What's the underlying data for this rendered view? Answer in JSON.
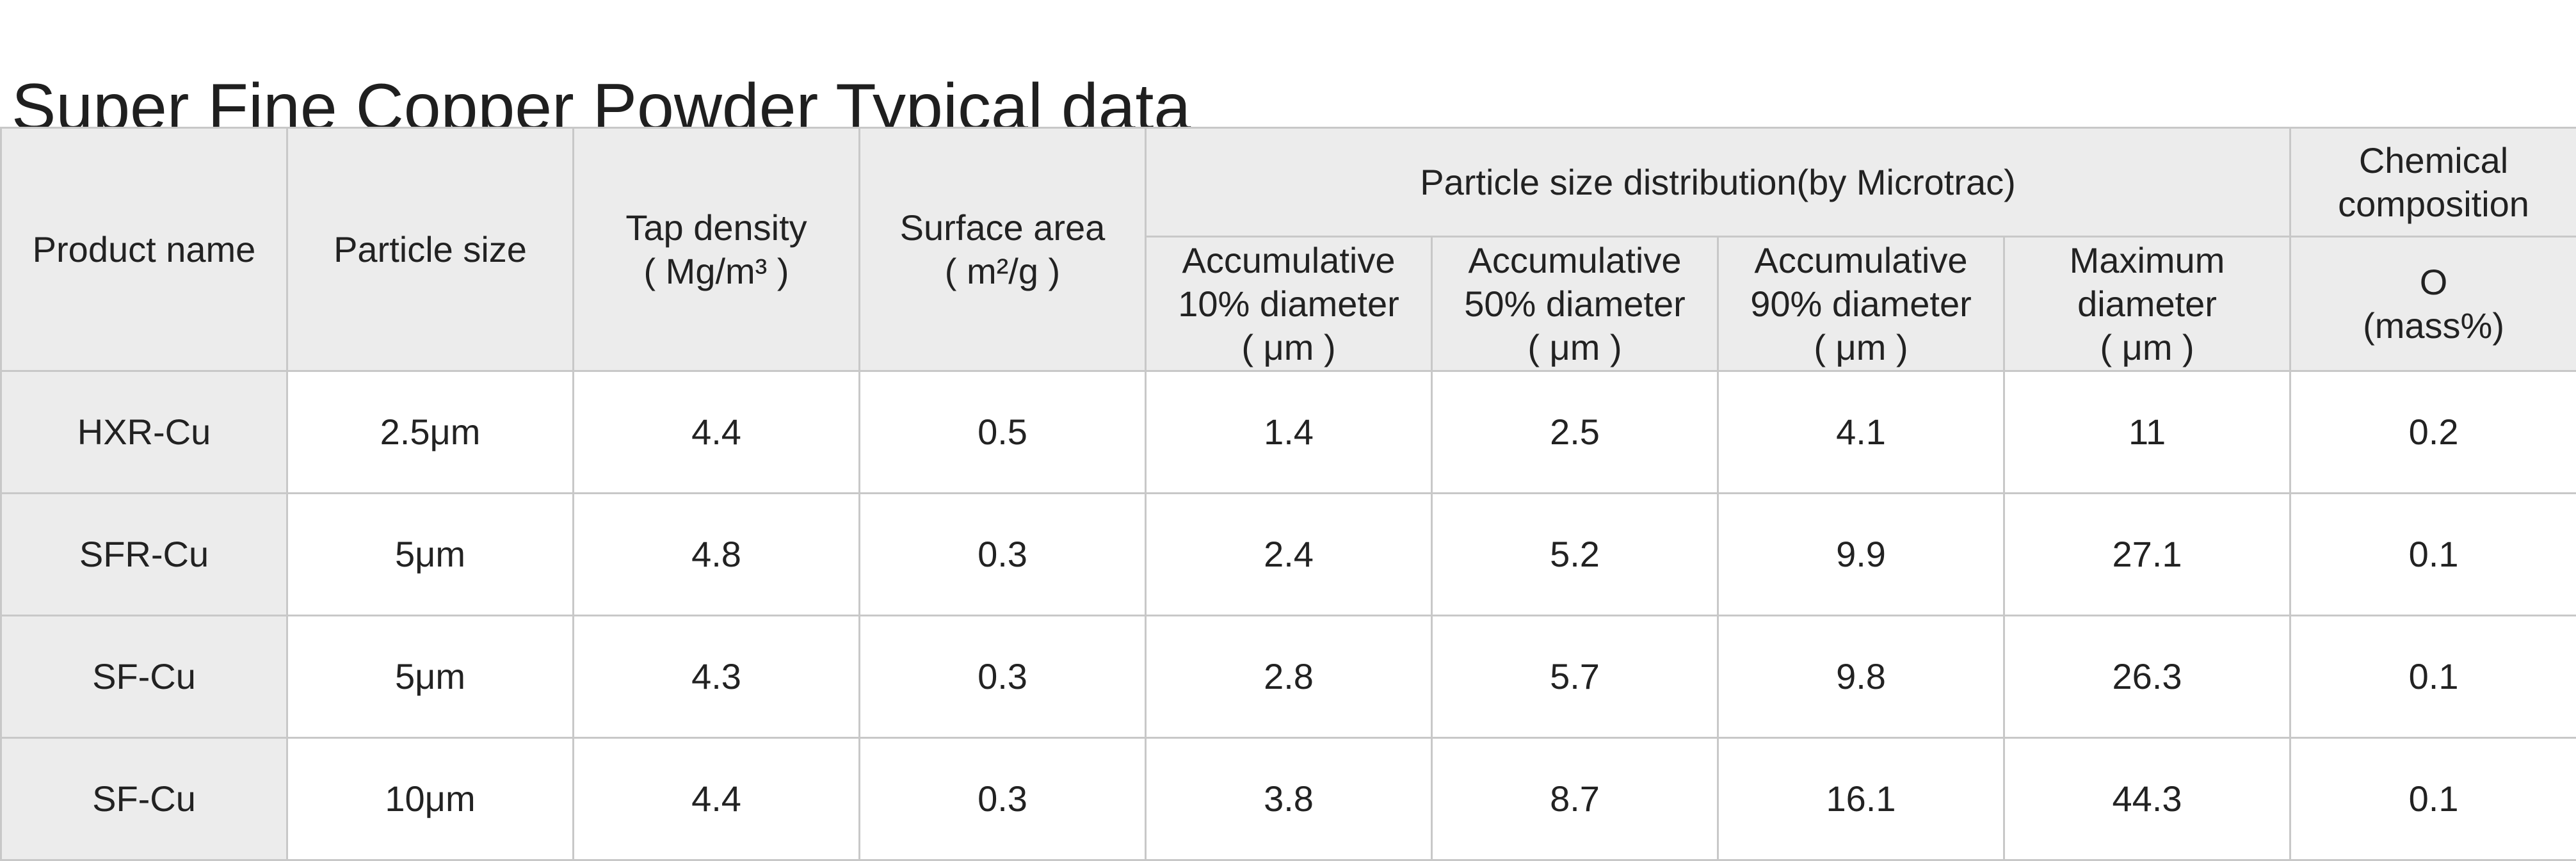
{
  "title": "Super Fine Copper Powder Typical data",
  "headers": {
    "product_name": "Product name",
    "particle_size": "Particle size",
    "tap_density": {
      "line1": "Tap density",
      "line2": "( Mg/m³ )"
    },
    "surface_area": {
      "line1": "Surface area",
      "line2": "( m²/g )"
    },
    "psd_group": "Particle size distribution(by Microtrac)",
    "chemical_group": {
      "line1": "Chemical",
      "line2": "composition"
    },
    "acc10": {
      "line1": "Accumulative",
      "line2": "10% diameter",
      "line3": "( μm )"
    },
    "acc50": {
      "line1": "Accumulative",
      "line2": "50% diameter",
      "line3": "( μm )"
    },
    "acc90": {
      "line1": "Accumulative",
      "line2": "90% diameter",
      "line3": "( μm )"
    },
    "max_diameter": {
      "line1": "Maximum",
      "line2": "diameter",
      "line3": "( μm )"
    },
    "oxygen": {
      "line1": "O",
      "line2": "(mass%)"
    }
  },
  "rows": [
    {
      "name": "HXR-Cu",
      "particle_size": "2.5μm",
      "tap_density": "4.4",
      "surface_area": "0.5",
      "d10": "1.4",
      "d50": "2.5",
      "d90": "4.1",
      "dmax": "11",
      "oxygen": "0.2"
    },
    {
      "name": "SFR-Cu",
      "particle_size": "5μm",
      "tap_density": "4.8",
      "surface_area": "0.3",
      "d10": "2.4",
      "d50": "5.2",
      "d90": "9.9",
      "dmax": "27.1",
      "oxygen": "0.1"
    },
    {
      "name": "SF-Cu",
      "particle_size": "5μm",
      "tap_density": "4.3",
      "surface_area": "0.3",
      "d10": "2.8",
      "d50": "5.7",
      "d90": "9.8",
      "dmax": "26.3",
      "oxygen": "0.1"
    },
    {
      "name": "SF-Cu",
      "particle_size": "10μm",
      "tap_density": "4.4",
      "surface_area": "0.3",
      "d10": "3.8",
      "d50": "8.7",
      "d90": "16.1",
      "dmax": "44.3",
      "oxygen": "0.1"
    }
  ]
}
